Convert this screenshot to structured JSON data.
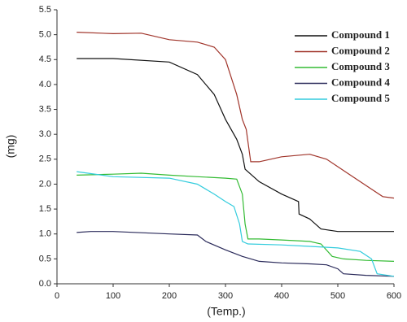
{
  "chart_data": {
    "type": "line",
    "xlabel": "(Temp.)",
    "ylabel": "(mg)",
    "xlim": [
      0,
      600
    ],
    "xticks": [
      0,
      100,
      200,
      300,
      400,
      500,
      600
    ],
    "ylim": [
      0,
      5.5
    ],
    "yticks": [
      {
        "value": 0,
        "label": "0.0"
      },
      0.5,
      {
        "value": 1,
        "label": "1.0"
      },
      1.5,
      {
        "value": 2,
        "label": "2.0"
      },
      2.5,
      {
        "value": 3,
        "label": "3.0"
      },
      3.5,
      {
        "value": 4,
        "label": "4.0"
      },
      4.5,
      {
        "value": 5,
        "label": "5.0"
      },
      5.5
    ],
    "legend": "upper right",
    "series": [
      {
        "name": "Compound 1",
        "color": "#111111",
        "x": [
          35,
          100,
          200,
          250,
          280,
          300,
          320,
          330,
          335,
          345,
          360,
          400,
          420,
          430,
          431,
          450,
          470,
          500,
          600
        ],
        "values": [
          4.52,
          4.52,
          4.45,
          4.2,
          3.8,
          3.3,
          2.9,
          2.6,
          2.3,
          2.2,
          2.05,
          1.8,
          1.7,
          1.65,
          1.4,
          1.3,
          1.1,
          1.05,
          1.05
        ]
      },
      {
        "name": "Compound 2",
        "color": "#a0342a",
        "x": [
          35,
          100,
          150,
          200,
          250,
          280,
          300,
          320,
          330,
          337,
          345,
          360,
          400,
          450,
          480,
          520,
          560,
          580,
          600
        ],
        "values": [
          5.05,
          5.02,
          5.03,
          4.9,
          4.85,
          4.75,
          4.5,
          3.8,
          3.3,
          3.1,
          2.45,
          2.45,
          2.55,
          2.6,
          2.5,
          2.2,
          1.9,
          1.75,
          1.72
        ]
      },
      {
        "name": "Compound 3",
        "color": "#33bb33",
        "x": [
          35,
          100,
          150,
          200,
          250,
          300,
          320,
          330,
          335,
          340,
          360,
          400,
          450,
          470,
          490,
          510,
          550,
          600
        ],
        "values": [
          2.18,
          2.2,
          2.22,
          2.18,
          2.15,
          2.12,
          2.1,
          1.8,
          1.2,
          0.9,
          0.9,
          0.88,
          0.85,
          0.8,
          0.55,
          0.5,
          0.47,
          0.45
        ]
      },
      {
        "name": "Compound 4",
        "color": "#2a2a5a",
        "x": [
          35,
          60,
          100,
          200,
          250,
          265,
          300,
          330,
          360,
          400,
          450,
          480,
          500,
          510,
          550,
          600
        ],
        "values": [
          1.03,
          1.05,
          1.05,
          1.0,
          0.98,
          0.85,
          0.68,
          0.55,
          0.45,
          0.42,
          0.4,
          0.38,
          0.3,
          0.2,
          0.17,
          0.15
        ]
      },
      {
        "name": "Compound 5",
        "color": "#33ccdd",
        "x": [
          35,
          100,
          200,
          250,
          280,
          300,
          315,
          325,
          330,
          340,
          400,
          450,
          500,
          540,
          560,
          570,
          600
        ],
        "values": [
          2.25,
          2.15,
          2.12,
          2.0,
          1.8,
          1.65,
          1.55,
          1.2,
          0.85,
          0.8,
          0.78,
          0.75,
          0.72,
          0.65,
          0.5,
          0.2,
          0.15
        ]
      }
    ]
  }
}
